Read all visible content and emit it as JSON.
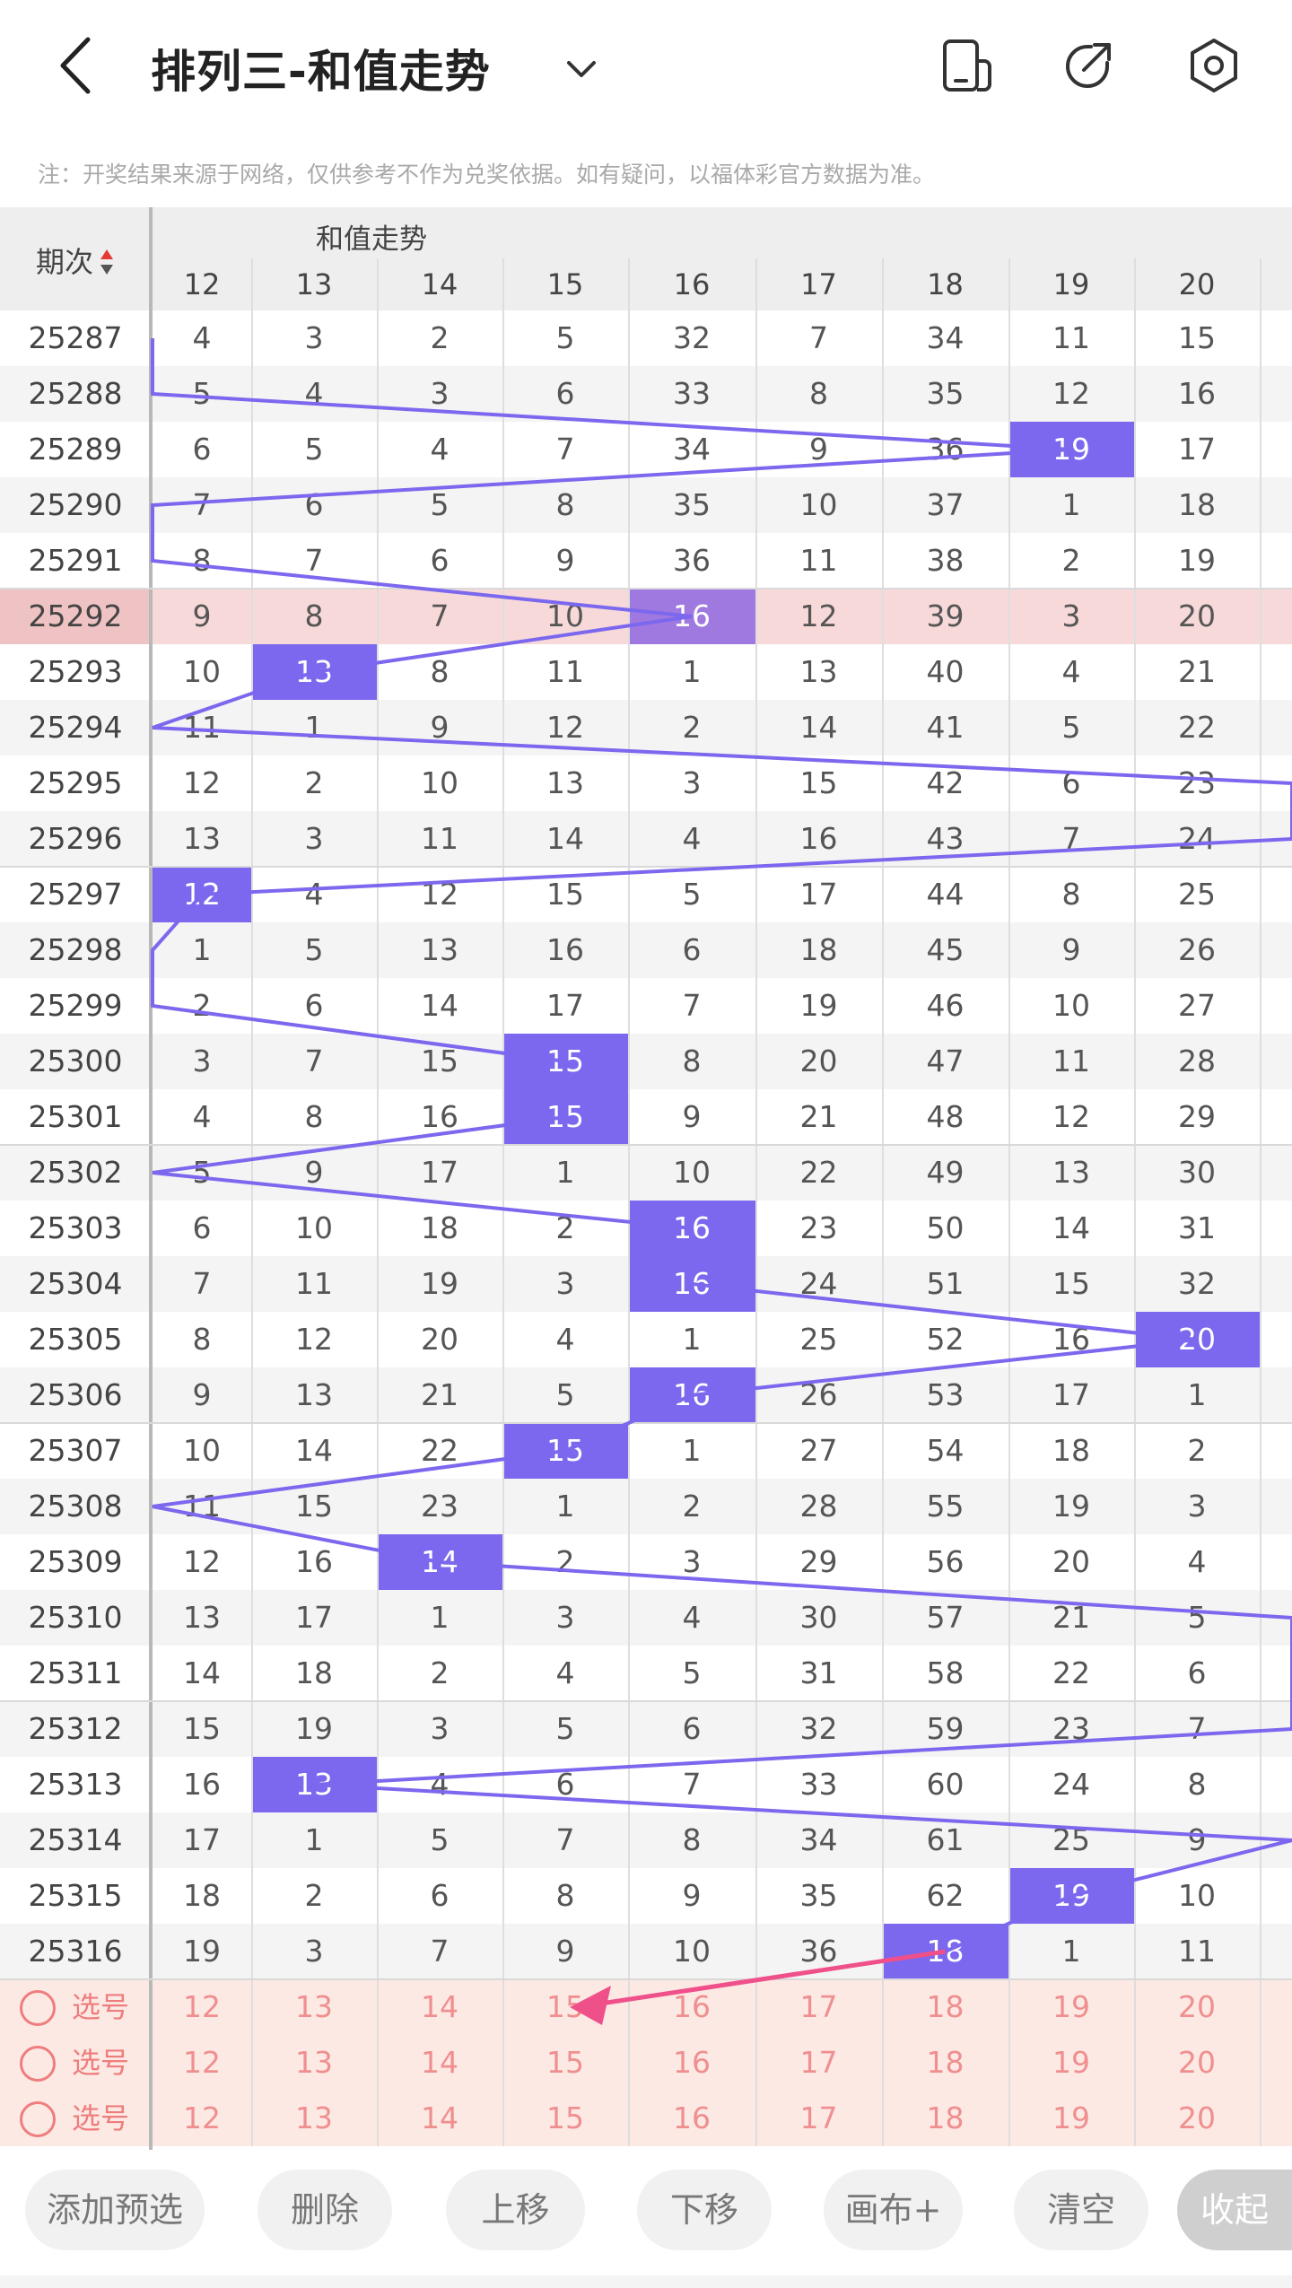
{
  "header": {
    "title": "排列三-和值走势",
    "back_icon": "chevron-left-icon",
    "dropdown_icon": "chevron-down-icon",
    "actions": [
      "phone-layout-icon",
      "share-icon",
      "settings-icon"
    ]
  },
  "notice": "注：开奖结果来源于网络，仅供参考不作为兑奖依据。如有疑问，以福体彩官方数据为准。",
  "table": {
    "issue_header": "期次",
    "group_title": "和值走势",
    "columns": [
      "12",
      "13",
      "14",
      "15",
      "16",
      "17",
      "18",
      "19",
      "20"
    ],
    "highlight_color": "#7b68ee",
    "rows": [
      {
        "issue": "25287",
        "values": [
          "4",
          "3",
          "2",
          "5",
          "32",
          "7",
          "34",
          "11",
          "15"
        ],
        "hit": null
      },
      {
        "issue": "25288",
        "values": [
          "5",
          "4",
          "3",
          "6",
          "33",
          "8",
          "35",
          "12",
          "16"
        ],
        "hit": null
      },
      {
        "issue": "25289",
        "values": [
          "6",
          "5",
          "4",
          "7",
          "34",
          "9",
          "36",
          "19",
          "17"
        ],
        "hit": 7
      },
      {
        "issue": "25290",
        "values": [
          "7",
          "6",
          "5",
          "8",
          "35",
          "10",
          "37",
          "1",
          "18"
        ],
        "hit": null
      },
      {
        "issue": "25291",
        "values": [
          "8",
          "7",
          "6",
          "9",
          "36",
          "11",
          "38",
          "2",
          "19"
        ],
        "hit": null
      },
      {
        "issue": "25292",
        "values": [
          "9",
          "8",
          "7",
          "10",
          "16",
          "12",
          "39",
          "3",
          "20"
        ],
        "hit": 4,
        "highlight": true
      },
      {
        "issue": "25293",
        "values": [
          "10",
          "13",
          "8",
          "11",
          "1",
          "13",
          "40",
          "4",
          "21"
        ],
        "hit": 1
      },
      {
        "issue": "25294",
        "values": [
          "11",
          "1",
          "9",
          "12",
          "2",
          "14",
          "41",
          "5",
          "22"
        ],
        "hit": null
      },
      {
        "issue": "25295",
        "values": [
          "12",
          "2",
          "10",
          "13",
          "3",
          "15",
          "42",
          "6",
          "23"
        ],
        "hit": null
      },
      {
        "issue": "25296",
        "values": [
          "13",
          "3",
          "11",
          "14",
          "4",
          "16",
          "43",
          "7",
          "24"
        ],
        "hit": null
      },
      {
        "issue": "25297",
        "values": [
          "12",
          "4",
          "12",
          "15",
          "5",
          "17",
          "44",
          "8",
          "25"
        ],
        "hit": 0
      },
      {
        "issue": "25298",
        "values": [
          "1",
          "5",
          "13",
          "16",
          "6",
          "18",
          "45",
          "9",
          "26"
        ],
        "hit": null
      },
      {
        "issue": "25299",
        "values": [
          "2",
          "6",
          "14",
          "17",
          "7",
          "19",
          "46",
          "10",
          "27"
        ],
        "hit": null
      },
      {
        "issue": "25300",
        "values": [
          "3",
          "7",
          "15",
          "15",
          "8",
          "20",
          "47",
          "11",
          "28"
        ],
        "hit": 3
      },
      {
        "issue": "25301",
        "values": [
          "4",
          "8",
          "16",
          "15",
          "9",
          "21",
          "48",
          "12",
          "29"
        ],
        "hit": 3
      },
      {
        "issue": "25302",
        "values": [
          "5",
          "9",
          "17",
          "1",
          "10",
          "22",
          "49",
          "13",
          "30"
        ],
        "hit": null
      },
      {
        "issue": "25303",
        "values": [
          "6",
          "10",
          "18",
          "2",
          "16",
          "23",
          "50",
          "14",
          "31"
        ],
        "hit": 4
      },
      {
        "issue": "25304",
        "values": [
          "7",
          "11",
          "19",
          "3",
          "16",
          "24",
          "51",
          "15",
          "32"
        ],
        "hit": 4
      },
      {
        "issue": "25305",
        "values": [
          "8",
          "12",
          "20",
          "4",
          "1",
          "25",
          "52",
          "16",
          "20"
        ],
        "hit": 8
      },
      {
        "issue": "25306",
        "values": [
          "9",
          "13",
          "21",
          "5",
          "16",
          "26",
          "53",
          "17",
          "1"
        ],
        "hit": 4
      },
      {
        "issue": "25307",
        "values": [
          "10",
          "14",
          "22",
          "15",
          "1",
          "27",
          "54",
          "18",
          "2"
        ],
        "hit": 3
      },
      {
        "issue": "25308",
        "values": [
          "11",
          "15",
          "23",
          "1",
          "2",
          "28",
          "55",
          "19",
          "3"
        ],
        "hit": null
      },
      {
        "issue": "25309",
        "values": [
          "12",
          "16",
          "14",
          "2",
          "3",
          "29",
          "56",
          "20",
          "4"
        ],
        "hit": 2
      },
      {
        "issue": "25310",
        "values": [
          "13",
          "17",
          "1",
          "3",
          "4",
          "30",
          "57",
          "21",
          "5"
        ],
        "hit": null
      },
      {
        "issue": "25311",
        "values": [
          "14",
          "18",
          "2",
          "4",
          "5",
          "31",
          "58",
          "22",
          "6"
        ],
        "hit": null
      },
      {
        "issue": "25312",
        "values": [
          "15",
          "19",
          "3",
          "5",
          "6",
          "32",
          "59",
          "23",
          "7"
        ],
        "hit": null
      },
      {
        "issue": "25313",
        "values": [
          "16",
          "13",
          "4",
          "6",
          "7",
          "33",
          "60",
          "24",
          "8"
        ],
        "hit": 1
      },
      {
        "issue": "25314",
        "values": [
          "17",
          "1",
          "5",
          "7",
          "8",
          "34",
          "61",
          "25",
          "9"
        ],
        "hit": null
      },
      {
        "issue": "25315",
        "values": [
          "18",
          "2",
          "6",
          "8",
          "9",
          "35",
          "62",
          "19",
          "10"
        ],
        "hit": 7
      },
      {
        "issue": "25316",
        "values": [
          "19",
          "3",
          "7",
          "9",
          "10",
          "36",
          "18",
          "1",
          "11"
        ],
        "hit": 6
      }
    ],
    "pick_rows": [
      {
        "label": "选号",
        "values": [
          "12",
          "13",
          "14",
          "15",
          "16",
          "17",
          "18",
          "19",
          "20"
        ]
      },
      {
        "label": "选号",
        "values": [
          "12",
          "13",
          "14",
          "15",
          "16",
          "17",
          "18",
          "19",
          "20"
        ]
      },
      {
        "label": "选号",
        "values": [
          "12",
          "13",
          "14",
          "15",
          "16",
          "17",
          "18",
          "19",
          "20"
        ]
      }
    ]
  },
  "toolbar": {
    "buttons": [
      "添加预选",
      "删除",
      "上移",
      "下移",
      "画布+",
      "清空",
      "收起"
    ]
  }
}
